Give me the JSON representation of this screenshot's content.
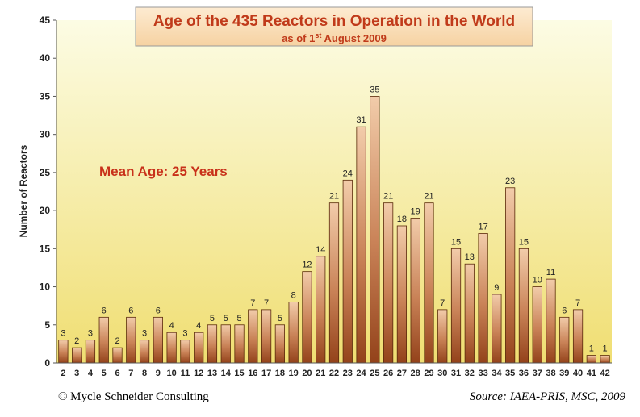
{
  "chart_data": {
    "type": "bar",
    "title": "Age of the 435 Reactors in Operation in the World",
    "subtitle_prefix": "as of 1",
    "subtitle_sup": "st",
    "subtitle_suffix": " August 2009",
    "ylabel": "Number of Reactors",
    "xlabel": "",
    "ylim": [
      0,
      45
    ],
    "yticks": [
      0,
      5,
      10,
      15,
      20,
      25,
      30,
      35,
      40,
      45
    ],
    "annotation": "Mean Age: 25 Years",
    "grid": false,
    "categories": [
      "2",
      "3",
      "4",
      "5",
      "6",
      "7",
      "8",
      "9",
      "10",
      "11",
      "12",
      "13",
      "14",
      "15",
      "16",
      "17",
      "18",
      "19",
      "20",
      "21",
      "22",
      "23",
      "24",
      "25",
      "26",
      "27",
      "28",
      "29",
      "30",
      "31",
      "32",
      "33",
      "34",
      "35",
      "36",
      "37",
      "38",
      "39",
      "40",
      "41",
      "42"
    ],
    "values": [
      3,
      2,
      3,
      6,
      2,
      6,
      3,
      6,
      4,
      3,
      4,
      5,
      5,
      5,
      7,
      7,
      5,
      8,
      12,
      14,
      21,
      24,
      31,
      35,
      21,
      18,
      19,
      21,
      7,
      15,
      13,
      17,
      9,
      23,
      15,
      10,
      11,
      6,
      7,
      1,
      1
    ],
    "colors": {
      "bar_top": "#f0c8a8",
      "bar_bottom": "#9a4a18",
      "bar_stroke": "#5a2a0a",
      "title_text": "#c03a1a",
      "annotation": "#c8311a",
      "bg_top": "#fbfbe0",
      "bg_bottom": "#f1e07a"
    }
  },
  "footer": {
    "copyright": "© Mycle Schneider Consulting",
    "source": "Source: IAEA-PRIS, MSC, 2009"
  }
}
